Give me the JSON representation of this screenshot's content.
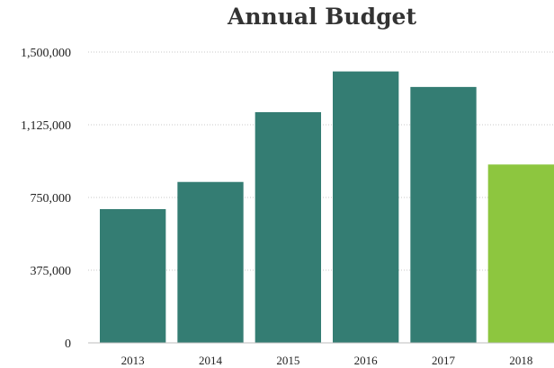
{
  "chart_data": {
    "type": "bar",
    "title": "Annual Budget",
    "xlabel": "",
    "ylabel": "",
    "categories": [
      "2013",
      "2014",
      "2015",
      "2016",
      "2017",
      "2018"
    ],
    "values": [
      690000,
      830000,
      1190000,
      1400000,
      1320000,
      920000
    ],
    "bar_colors": [
      "#347d73",
      "#347d73",
      "#347d73",
      "#347d73",
      "#347d73",
      "#8dc63f"
    ],
    "ylim": [
      0,
      1500000
    ],
    "yticks": [
      0,
      375000,
      750000,
      1125000,
      1500000
    ],
    "ytick_labels": [
      "0",
      "375,000",
      "750,000",
      "1,125,000",
      "1,500,000"
    ],
    "grid": true,
    "legend": "none"
  }
}
